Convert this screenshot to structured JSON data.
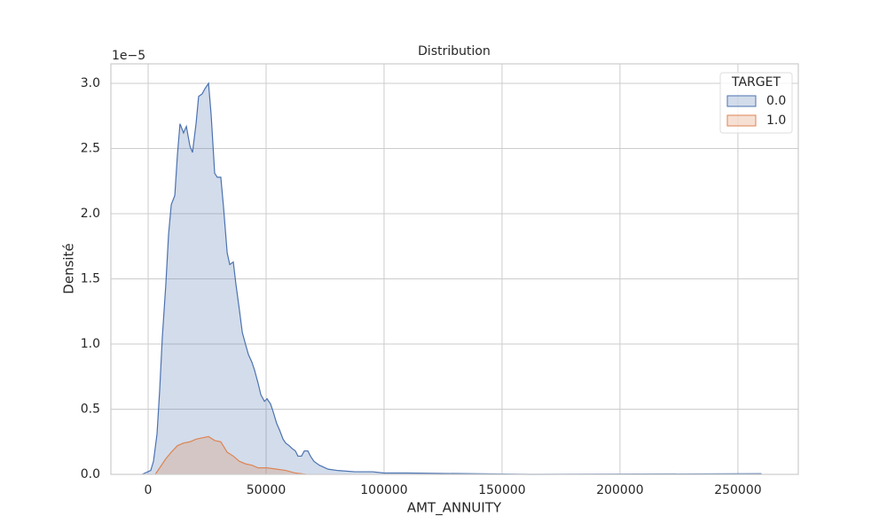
{
  "chart_data": {
    "type": "area",
    "title": "Distribution",
    "xlabel": "AMT_ANNUITY",
    "ylabel": "Densité",
    "y_offset_label": "1e−5",
    "legend_title": "TARGET",
    "legend": "upper right",
    "grid": true,
    "xlim": [
      -15800,
      275600
    ],
    "xticks": [
      0,
      50000,
      100000,
      150000,
      200000,
      250000
    ],
    "ylim": [
      0,
      3.15
    ],
    "yticks": [
      {
        "value": 0,
        "label": "0.0"
      },
      0.5,
      {
        "value": 1,
        "label": "1.0"
      },
      1.5,
      {
        "value": 2,
        "label": "2.0"
      },
      2.5,
      {
        "value": 3,
        "label": "3.0"
      }
    ],
    "series": [
      {
        "name": "0.0",
        "color": "#4c72b0",
        "x": [
          -2600,
          1100,
          2260,
          3760,
          4900,
          6000,
          7500,
          8650,
          9800,
          11300,
          12400,
          13500,
          15000,
          16200,
          17700,
          18800,
          20300,
          21400,
          22900,
          24100,
          25600,
          26700,
          28200,
          29300,
          30800,
          32000,
          33500,
          34600,
          36100,
          37200,
          38700,
          39900,
          41400,
          42500,
          44000,
          45100,
          46600,
          47800,
          49300,
          50400,
          51900,
          53000,
          54500,
          55700,
          57200,
          58300,
          59800,
          60900,
          62400,
          63500,
          65000,
          66200,
          67700,
          68800,
          70300,
          72600,
          76300,
          80100,
          87600,
          95100,
          100000,
          110000,
          163000,
          260000
        ],
        "values": [
          0,
          0.03,
          0.1,
          0.31,
          0.65,
          1.05,
          1.46,
          1.84,
          2.07,
          2.14,
          2.45,
          2.69,
          2.62,
          2.67,
          2.52,
          2.47,
          2.69,
          2.9,
          2.92,
          2.96,
          3.0,
          2.76,
          2.31,
          2.28,
          2.28,
          2.04,
          1.7,
          1.61,
          1.63,
          1.46,
          1.26,
          1.09,
          0.99,
          0.92,
          0.86,
          0.8,
          0.7,
          0.61,
          0.56,
          0.58,
          0.54,
          0.48,
          0.39,
          0.34,
          0.27,
          0.24,
          0.22,
          0.2,
          0.18,
          0.14,
          0.14,
          0.18,
          0.18,
          0.14,
          0.1,
          0.07,
          0.04,
          0.03,
          0.02,
          0.02,
          0.01,
          0.01,
          0,
          0.005
        ]
      },
      {
        "name": "1.0",
        "color": "#dd8452",
        "x": [
          3000,
          4900,
          7500,
          9800,
          12400,
          15000,
          17700,
          20300,
          22900,
          25600,
          28200,
          30800,
          33500,
          36100,
          38700,
          41400,
          44000,
          46600,
          50400,
          54500,
          58300,
          62400,
          67000
        ],
        "values": [
          0,
          0.05,
          0.12,
          0.17,
          0.22,
          0.24,
          0.25,
          0.27,
          0.28,
          0.29,
          0.26,
          0.25,
          0.17,
          0.14,
          0.1,
          0.08,
          0.07,
          0.05,
          0.05,
          0.04,
          0.03,
          0.01,
          0
        ]
      }
    ]
  }
}
